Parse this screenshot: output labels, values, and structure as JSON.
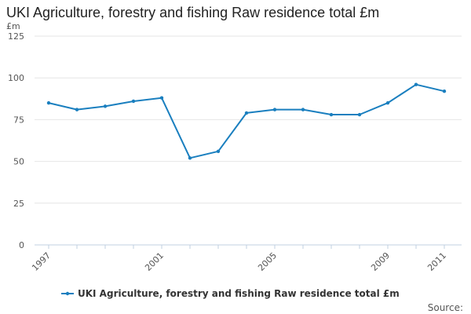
{
  "chart_data": {
    "type": "line",
    "title": "UKI Agriculture, forestry and fishing Raw residence total £m",
    "unit_label": "£m",
    "ylim": [
      0,
      125
    ],
    "y_ticks": [
      0,
      25,
      50,
      75,
      100,
      125
    ],
    "x": [
      1997,
      1998,
      1999,
      2000,
      2001,
      2002,
      2003,
      2004,
      2005,
      2006,
      2007,
      2008,
      2009,
      2010,
      2011
    ],
    "x_tick_labels": [
      "1997",
      "2001",
      "2005",
      "2009",
      "2011"
    ],
    "series": [
      {
        "name": "UKI Agriculture, forestry and fishing Raw residence total £m",
        "color": "#1a7fbf",
        "values": [
          85,
          81,
          83,
          86,
          88,
          52,
          56,
          79,
          81,
          81,
          78,
          78,
          85,
          96,
          92
        ]
      }
    ],
    "grid": "horizontal",
    "legend_position": "bottom",
    "source_label": "Source:"
  }
}
